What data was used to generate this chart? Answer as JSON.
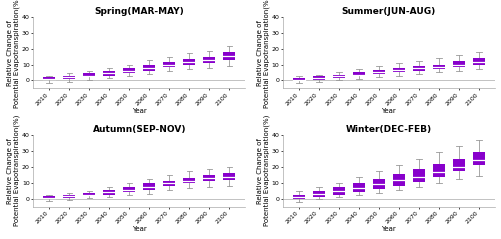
{
  "seasons": [
    "Spring(MAR-MAY)",
    "Summer(JUN-AUG)",
    "Autumn(SEP-NOV)",
    "Winter(DEC-FEB)"
  ],
  "years": [
    2010,
    2020,
    2030,
    2040,
    2050,
    2060,
    2070,
    2080,
    2090,
    2100
  ],
  "ylim": [
    -5,
    40
  ],
  "yticks": [
    0,
    10,
    20,
    30,
    40
  ],
  "ylabel": "Relative Change of\nPotential Evapotranspiration(%)",
  "xlabel": "Year",
  "box_color": "#8800CC",
  "whisker_color": "#999999",
  "box_data": {
    "Spring(MAR-MAY)": {
      "q1": [
        0.0,
        1.0,
        2.0,
        3.0,
        4.5,
        6.0,
        8.5,
        9.5,
        11.0,
        13.0
      ],
      "med": [
        1.0,
        2.0,
        3.0,
        4.5,
        6.0,
        8.0,
        10.0,
        11.5,
        13.0,
        15.5
      ],
      "q3": [
        2.0,
        3.0,
        4.5,
        6.0,
        7.5,
        10.0,
        11.5,
        13.5,
        15.0,
        18.0
      ],
      "wlo": [
        -1.5,
        -1.0,
        0.5,
        1.5,
        2.5,
        4.0,
        6.0,
        7.0,
        8.0,
        9.0
      ],
      "whi": [
        3.0,
        4.5,
        6.0,
        8.0,
        10.0,
        13.0,
        15.0,
        17.0,
        18.5,
        21.5
      ]
    },
    "Summer(JUN-AUG)": {
      "q1": [
        0.0,
        0.5,
        1.5,
        2.5,
        4.0,
        5.0,
        6.0,
        7.0,
        8.5,
        10.0
      ],
      "med": [
        0.5,
        1.5,
        2.5,
        3.5,
        5.0,
        6.5,
        7.5,
        8.5,
        10.0,
        11.5
      ],
      "q3": [
        1.5,
        2.5,
        3.5,
        5.0,
        6.5,
        8.0,
        9.0,
        10.0,
        12.0,
        14.0
      ],
      "wlo": [
        -1.5,
        -1.0,
        0.0,
        1.0,
        2.0,
        3.0,
        4.0,
        5.0,
        6.0,
        7.0
      ],
      "whi": [
        2.5,
        3.5,
        5.0,
        7.0,
        9.0,
        11.0,
        12.5,
        14.0,
        16.0,
        18.0
      ]
    },
    "Autumn(SEP-NOV)": {
      "q1": [
        0.0,
        0.5,
        1.5,
        2.5,
        4.0,
        5.5,
        8.0,
        9.5,
        11.0,
        11.5
      ],
      "med": [
        0.5,
        1.5,
        2.5,
        4.0,
        5.5,
        7.5,
        9.5,
        11.0,
        13.0,
        13.5
      ],
      "q3": [
        1.5,
        2.5,
        3.5,
        5.5,
        7.0,
        9.5,
        11.0,
        13.0,
        15.0,
        16.0
      ],
      "wlo": [
        -1.5,
        -1.0,
        0.5,
        1.0,
        2.0,
        3.0,
        5.5,
        6.5,
        7.5,
        8.0
      ],
      "whi": [
        2.5,
        3.5,
        5.0,
        7.5,
        9.5,
        12.5,
        14.5,
        17.0,
        18.5,
        19.5
      ]
    },
    "Winter(DEC-FEB)": {
      "q1": [
        0.0,
        1.0,
        2.5,
        4.0,
        6.0,
        8.0,
        10.5,
        13.5,
        17.0,
        21.0
      ],
      "med": [
        1.0,
        3.0,
        4.5,
        6.5,
        9.0,
        11.5,
        13.5,
        16.5,
        20.0,
        24.0
      ],
      "q3": [
        2.5,
        5.0,
        7.0,
        9.5,
        12.5,
        15.5,
        18.5,
        22.0,
        25.0,
        29.0
      ],
      "wlo": [
        -2.0,
        -0.5,
        1.0,
        2.0,
        3.5,
        5.5,
        7.0,
        9.5,
        12.0,
        14.0
      ],
      "whi": [
        4.5,
        7.5,
        10.0,
        13.5,
        17.0,
        21.0,
        25.0,
        29.0,
        33.0,
        37.0
      ]
    }
  },
  "background_color": "#ffffff",
  "title_fontsize": 6.5,
  "label_fontsize": 5.0,
  "tick_fontsize": 4.5
}
